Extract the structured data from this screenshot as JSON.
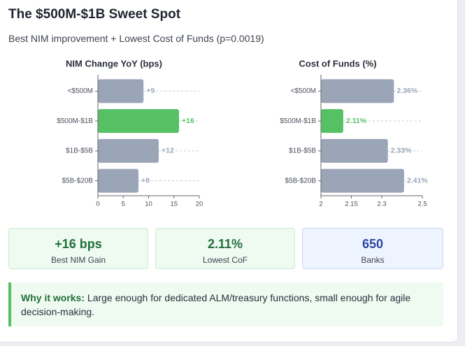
{
  "header": {
    "title": "The $500M-$1B Sweet Spot",
    "subtitle": "Best NIM improvement + Lowest Cost of Funds (p=0.0019)"
  },
  "chart_data": [
    {
      "type": "bar",
      "orientation": "horizontal",
      "title": "NIM Change YoY (bps)",
      "categories": [
        "<$500M",
        "$500M-$1B",
        "$1B-$5B",
        "$5B-$20B"
      ],
      "values": [
        9,
        16,
        12,
        8
      ],
      "value_labels": [
        "+9",
        "+16",
        "+12",
        "+8"
      ],
      "colors": [
        "#9aa5b8",
        "#55c164",
        "#9aa5b8",
        "#9aa5b8"
      ],
      "xlim": [
        0,
        20
      ],
      "xticks": [
        0,
        5,
        10,
        15,
        20
      ]
    },
    {
      "type": "bar",
      "orientation": "horizontal",
      "title": "Cost of Funds (%)",
      "categories": [
        "<$500M",
        "$500M-$1B",
        "$1B-$5B",
        "$5B-$20B"
      ],
      "values": [
        2.36,
        2.11,
        2.33,
        2.41
      ],
      "value_labels": [
        "2.36%",
        "2.11%",
        "2.33%",
        "2.41%"
      ],
      "colors": [
        "#9aa5b8",
        "#55c164",
        "#9aa5b8",
        "#9aa5b8"
      ],
      "xlim": [
        2,
        2.5
      ],
      "xticks": [
        2,
        2.15,
        2.3,
        2.5
      ]
    }
  ],
  "stats": [
    {
      "value": "+16 bps",
      "label": "Best NIM Gain"
    },
    {
      "value": "2.11%",
      "label": "Lowest CoF"
    },
    {
      "value": 650,
      "label": "Banks"
    }
  ],
  "callout": {
    "lead": "Why it works:",
    "text": "Large enough for dedicated ALM/treasury functions, small enough for agile decision-making."
  }
}
